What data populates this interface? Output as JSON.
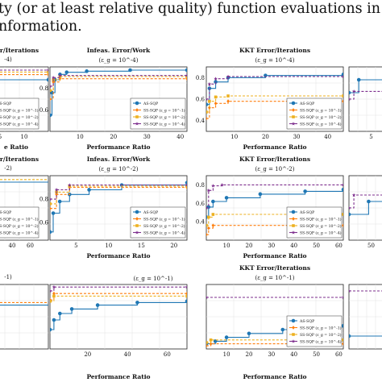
{
  "caption": {
    "line1": "ty (or at least relative quality) function evaluations in metho",
    "line2": "nformation."
  },
  "labels": {
    "title_infeas": "Infeas. Error/Work",
    "title_kkt": "KKT Error/Iterations",
    "title_left": "r/Iterations",
    "xlabel": "Performance Ratio",
    "xlabel_left": "e Ratio",
    "eps_row1": "(ε_g = 10^-4)",
    "eps_row2": "(ε_g = 10^-2)",
    "eps_row3": "(ε_g = 10^-1)",
    "eps_left_row1": "-4)",
    "eps_left_row2": "-2)",
    "eps_left_row3": "-1)"
  },
  "legend": [
    {
      "name": "AS-SQP",
      "color": "#1f77b4"
    },
    {
      "name": "SS-SQP (ε_g = 10^-1)",
      "color": "#ff7f0e"
    },
    {
      "name": "SS-SQP (ε_g = 10^-2)",
      "color": "#edb120"
    },
    {
      "name": "SS-SQP (ε_g = 10^-4)",
      "color": "#7e2f8e"
    }
  ],
  "colors": {
    "blue": "#1f77b4",
    "orange": "#ff7f0e",
    "yellow": "#edb120",
    "purple": "#7e2f8e"
  },
  "chart_data": [
    {
      "type": "line",
      "panel": "row1-col1",
      "xlabel": "e Ratio",
      "x_ticks": [
        "5",
        "10"
      ],
      "y_ticks": [],
      "series": [
        {
          "name": "AS-SQP",
          "points": [
            [
              1,
              0.8
            ],
            [
              10,
              0.8
            ]
          ]
        },
        {
          "name": "SS-SQP (ε_g = 10^-1)",
          "points": [
            [
              1,
              0.88
            ],
            [
              10,
              0.88
            ]
          ]
        },
        {
          "name": "SS-SQP (ε_g = 10^-2)",
          "points": [
            [
              1,
              0.92
            ],
            [
              10,
              0.92
            ]
          ]
        },
        {
          "name": "SS-SQP (ε_g = 10^-4)",
          "points": [
            [
              1,
              0.95
            ],
            [
              10,
              0.95
            ]
          ]
        }
      ]
    },
    {
      "type": "line",
      "panel": "row1-col2",
      "title": "Infeas. Error/Work",
      "subtitle": "(ε_g = 10^-4)",
      "xlabel": "Performance Ratio",
      "xlim": [
        1,
        42
      ],
      "ylim": [
        0.4,
        1.0
      ],
      "x_ticks": [
        "10",
        "20",
        "30",
        "40"
      ],
      "y_ticks": [
        "0.6",
        "0.8"
      ],
      "series": [
        {
          "name": "AS-SQP",
          "points": [
            [
              1,
              0.55
            ],
            [
              1.6,
              0.76
            ],
            [
              2.5,
              0.88
            ],
            [
              4,
              0.93
            ],
            [
              6,
              0.95
            ],
            [
              12,
              0.96
            ],
            [
              25,
              0.97
            ],
            [
              42,
              0.97
            ]
          ]
        },
        {
          "name": "SS-SQP (ε_g = 10^-1)",
          "points": [
            [
              1,
              0.7
            ],
            [
              2,
              0.86
            ],
            [
              4,
              0.89
            ],
            [
              42,
              0.89
            ]
          ]
        },
        {
          "name": "SS-SQP (ε_g = 10^-2)",
          "points": [
            [
              1,
              0.78
            ],
            [
              2,
              0.88
            ],
            [
              4,
              0.91
            ],
            [
              42,
              0.91
            ]
          ]
        },
        {
          "name": "SS-SQP (ε_g = 10^-4)",
          "points": [
            [
              1,
              0.82
            ],
            [
              2,
              0.9
            ],
            [
              4,
              0.92
            ],
            [
              42,
              0.92
            ]
          ]
        }
      ]
    },
    {
      "type": "line",
      "panel": "row1-col3",
      "title": "KKT Error/Iterations",
      "subtitle": "(ε_g = 10^-4)",
      "xlabel": "Performance Ratio",
      "xlim": [
        1,
        45
      ],
      "ylim": [
        0.3,
        0.9
      ],
      "x_ticks": [
        "10",
        "20",
        "30",
        "40"
      ],
      "y_ticks": [
        "0.4",
        "0.6",
        "0.8"
      ],
      "series": [
        {
          "name": "AS-SQP",
          "points": [
            [
              1,
              0.55
            ],
            [
              2,
              0.7
            ],
            [
              4,
              0.76
            ],
            [
              8,
              0.8
            ],
            [
              20,
              0.82
            ],
            [
              45,
              0.83
            ]
          ]
        },
        {
          "name": "SS-SQP (ε_g = 10^-1)",
          "points": [
            [
              1,
              0.42
            ],
            [
              2,
              0.52
            ],
            [
              4,
              0.56
            ],
            [
              8,
              0.58
            ],
            [
              45,
              0.58
            ]
          ]
        },
        {
          "name": "SS-SQP (ε_g = 10^-2)",
          "points": [
            [
              1,
              0.48
            ],
            [
              2,
              0.58
            ],
            [
              4,
              0.62
            ],
            [
              8,
              0.63
            ],
            [
              45,
              0.63
            ]
          ]
        },
        {
          "name": "SS-SQP (ε_g = 10^-4)",
          "points": [
            [
              1,
              0.6
            ],
            [
              2,
              0.74
            ],
            [
              4,
              0.79
            ],
            [
              8,
              0.81
            ],
            [
              45,
              0.81
            ]
          ]
        }
      ]
    },
    {
      "type": "line",
      "panel": "row1-col4",
      "x_ticks": [
        "5"
      ],
      "y_ticks": [],
      "series": [
        {
          "name": "AS-SQP",
          "points": [
            [
              1,
              0.6
            ],
            [
              3,
              0.8
            ],
            [
              10,
              0.8
            ]
          ]
        },
        {
          "name": "SS-SQP (ε_g = 10^-4)",
          "points": [
            [
              1,
              0.5
            ],
            [
              2,
              0.62
            ],
            [
              10,
              0.62
            ]
          ]
        }
      ]
    },
    {
      "type": "line",
      "panel": "row2-col1",
      "x_ticks": [
        "20",
        "40",
        "60"
      ],
      "y_ticks": [],
      "series": [
        {
          "name": "AS-SQP",
          "points": [
            [
              1,
              0.9
            ],
            [
              60,
              0.9
            ]
          ]
        },
        {
          "name": "SS-SQP (ε_g = 10^-2)",
          "points": [
            [
              1,
              0.94
            ],
            [
              60,
              0.94
            ]
          ]
        }
      ]
    },
    {
      "type": "line",
      "panel": "row2-col2",
      "title": "Infeas. Error/Work",
      "subtitle": "(ε_g = 10^-2)",
      "xlim": [
        1,
        22
      ],
      "ylim": [
        0.45,
        1.0
      ],
      "x_ticks": [
        "5",
        "10",
        "15",
        "20"
      ],
      "y_ticks": [
        "0.6",
        "0.8"
      ],
      "series": [
        {
          "name": "AS-SQP",
          "points": [
            [
              1,
              0.52
            ],
            [
              1.5,
              0.68
            ],
            [
              2.5,
              0.78
            ],
            [
              4,
              0.84
            ],
            [
              7,
              0.88
            ],
            [
              12,
              0.92
            ],
            [
              22,
              0.94
            ]
          ]
        },
        {
          "name": "SS-SQP (ε_g = 10^-1)",
          "points": [
            [
              1,
              0.72
            ],
            [
              2,
              0.84
            ],
            [
              4,
              0.9
            ],
            [
              22,
              0.9
            ]
          ]
        },
        {
          "name": "SS-SQP (ε_g = 10^-2)",
          "points": [
            [
              1,
              0.76
            ],
            [
              2,
              0.86
            ],
            [
              4,
              0.91
            ],
            [
              22,
              0.91
            ]
          ]
        },
        {
          "name": "SS-SQP (ε_g = 10^-4)",
          "points": [
            [
              1,
              0.8
            ],
            [
              2,
              0.88
            ],
            [
              4,
              0.92
            ],
            [
              22,
              0.92
            ]
          ]
        }
      ]
    },
    {
      "type": "line",
      "panel": "row2-col3",
      "title": "KKT Error/Iterations",
      "subtitle": "(ε_g = 10^-2)",
      "xlim": [
        1,
        62
      ],
      "ylim": [
        0.2,
        0.9
      ],
      "x_ticks": [
        "10",
        "20",
        "30",
        "40",
        "50",
        "60"
      ],
      "y_ticks": [
        "0.4",
        "0.6",
        "0.8"
      ],
      "series": [
        {
          "name": "AS-SQP",
          "points": [
            [
              1,
              0.45
            ],
            [
              2,
              0.56
            ],
            [
              4,
              0.62
            ],
            [
              10,
              0.66
            ],
            [
              25,
              0.7
            ],
            [
              45,
              0.73
            ],
            [
              62,
              0.75
            ]
          ]
        },
        {
          "name": "SS-SQP (ε_g = 10^-1)",
          "points": [
            [
              1,
              0.26
            ],
            [
              2,
              0.33
            ],
            [
              4,
              0.36
            ],
            [
              62,
              0.36
            ]
          ]
        },
        {
          "name": "SS-SQP (ε_g = 10^-2)",
          "points": [
            [
              1,
              0.36
            ],
            [
              2,
              0.45
            ],
            [
              4,
              0.48
            ],
            [
              62,
              0.48
            ]
          ]
        },
        {
          "name": "SS-SQP (ε_g = 10^-4)",
          "points": [
            [
              1,
              0.55
            ],
            [
              2,
              0.74
            ],
            [
              4,
              0.79
            ],
            [
              8,
              0.8
            ],
            [
              62,
              0.8
            ]
          ]
        }
      ]
    },
    {
      "type": "line",
      "panel": "row2-col4",
      "x_ticks": [
        "50"
      ],
      "y_ticks": [],
      "series": [
        {
          "name": "AS-SQP",
          "points": [
            [
              1,
              0.4
            ],
            [
              5,
              0.6
            ],
            [
              20,
              0.62
            ]
          ]
        },
        {
          "name": "SS-SQP (ε_g = 10^-4)",
          "points": [
            [
              1,
              0.5
            ],
            [
              2,
              0.7
            ],
            [
              20,
              0.72
            ]
          ]
        }
      ]
    },
    {
      "type": "line",
      "panel": "row3-col1",
      "y_ticks": [],
      "series": [
        {
          "name": "AS-SQP",
          "points": [
            [
              1,
              0.68
            ],
            [
              20,
              0.68
            ]
          ]
        },
        {
          "name": "SS-SQP (ε_g = 10^-1)",
          "points": [
            [
              1,
              0.72
            ],
            [
              20,
              0.72
            ]
          ]
        }
      ]
    },
    {
      "type": "line",
      "panel": "row3-col2",
      "title": "",
      "subtitle": "(ε_g = 10^-1)",
      "xlim": [
        1,
        70
      ],
      "ylim": [
        0.0,
        1.0
      ],
      "x_ticks": [
        "20",
        "40",
        "60"
      ],
      "y_ticks": [],
      "series": [
        {
          "name": "AS-SQP",
          "points": [
            [
              1,
              0.3
            ],
            [
              3,
              0.45
            ],
            [
              6,
              0.55
            ],
            [
              12,
              0.62
            ],
            [
              25,
              0.68
            ],
            [
              45,
              0.72
            ],
            [
              70,
              0.74
            ]
          ]
        },
        {
          "name": "SS-SQP (ε_g = 10^-1)",
          "points": [
            [
              1,
              0.76
            ],
            [
              3,
              0.86
            ],
            [
              70,
              0.86
            ]
          ]
        },
        {
          "name": "SS-SQP (ε_g = 10^-2)",
          "points": [
            [
              1,
              0.74
            ],
            [
              3,
              0.82
            ],
            [
              70,
              0.82
            ]
          ]
        },
        {
          "name": "SS-SQP (ε_g = 10^-4)",
          "points": [
            [
              1,
              0.9
            ],
            [
              3,
              0.96
            ],
            [
              70,
              0.96
            ]
          ]
        }
      ]
    },
    {
      "type": "line",
      "panel": "row3-col3",
      "title": "KKT Error/Iterations",
      "subtitle": "(ε_g = 10^-1)",
      "xlim": [
        1,
        62
      ],
      "ylim": [
        0.0,
        1.0
      ],
      "x_ticks": [
        "10",
        "20",
        "30",
        "40",
        "50",
        "60"
      ],
      "y_ticks": [],
      "series": [
        {
          "name": "AS-SQP",
          "points": [
            [
              1,
              0.08
            ],
            [
              5,
              0.12
            ],
            [
              10,
              0.18
            ],
            [
              20,
              0.24
            ],
            [
              35,
              0.3
            ],
            [
              50,
              0.34
            ],
            [
              62,
              0.36
            ]
          ]
        },
        {
          "name": "SS-SQP (ε_g = 10^-1)",
          "points": [
            [
              1,
              0.05
            ],
            [
              3,
              0.08
            ],
            [
              62,
              0.08
            ]
          ]
        },
        {
          "name": "SS-SQP (ε_g = 10^-2)",
          "points": [
            [
              1,
              0.1
            ],
            [
              3,
              0.14
            ],
            [
              62,
              0.14
            ]
          ]
        },
        {
          "name": "SS-SQP (ε_g = 10^-4)",
          "points": [
            [
              1,
              0.8
            ],
            [
              62,
              0.8
            ]
          ]
        }
      ]
    },
    {
      "type": "line",
      "panel": "row3-col4",
      "y_ticks": [],
      "series": [
        {
          "name": "AS-SQP",
          "points": [
            [
              1,
              0.2
            ],
            [
              10,
              0.3
            ]
          ]
        },
        {
          "name": "SS-SQP (ε_g = 10^-4)",
          "points": [
            [
              1,
              0.9
            ],
            [
              10,
              0.9
            ]
          ]
        }
      ]
    }
  ]
}
